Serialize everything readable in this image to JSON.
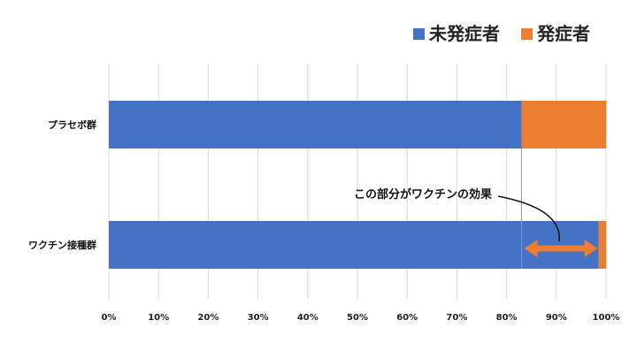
{
  "chart_data": {
    "type": "bar",
    "stacked": true,
    "orientation": "horizontal",
    "categories": [
      "プラセボ群",
      "ワクチン接種群"
    ],
    "series": [
      {
        "name": "未発症者",
        "values": [
          83,
          98.5
        ],
        "color": "#4472C4"
      },
      {
        "name": "発症者",
        "values": [
          17,
          1.5
        ],
        "color": "#ED7D31"
      }
    ],
    "xlim": [
      0,
      100
    ],
    "xticks": [
      "0%",
      "10%",
      "20%",
      "30%",
      "40%",
      "50%",
      "60%",
      "70%",
      "80%",
      "90%",
      "100%"
    ],
    "grid": true,
    "legend_position": "top-right",
    "annotation": {
      "text": "この部分がワクチンの効果",
      "range": [
        83,
        98.5
      ],
      "reference_value": 83,
      "arrow_color": "#ED7D31"
    }
  }
}
